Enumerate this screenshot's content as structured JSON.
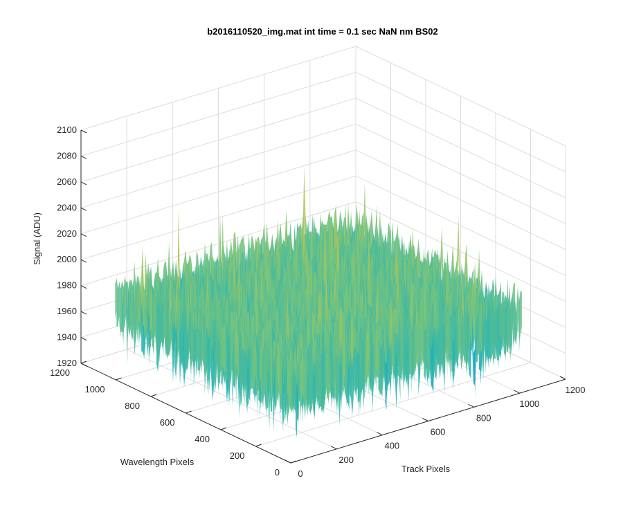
{
  "chart_data": {
    "type": "surface",
    "title": "b2016110520_img.mat int time = 0.1 sec  NaN nm BS02",
    "xlabel": "Track Pixels",
    "ylabel": "Wavelength Pixels",
    "zlabel": "Signal (ADU)",
    "xlim": [
      0,
      1200
    ],
    "ylim": [
      0,
      1200
    ],
    "zlim": [
      1920,
      2100
    ],
    "xticks": [
      0,
      200,
      400,
      600,
      800,
      1000,
      1200
    ],
    "yticks": [
      0,
      200,
      400,
      600,
      800,
      1000,
      1200
    ],
    "zticks": [
      1920,
      1940,
      1960,
      1980,
      2000,
      2020,
      2040,
      2060,
      2080,
      2100
    ],
    "data_extent": {
      "track": [
        0,
        1024
      ],
      "wavelength": [
        0,
        1024
      ]
    },
    "signal_mean": 1990,
    "signal_range": [
      1925,
      2070
    ],
    "grid": true,
    "colormap": [
      "#0a6fd6",
      "#1496d4",
      "#22b3b8",
      "#7cc47a",
      "#c8c248",
      "#ebc12c"
    ]
  }
}
